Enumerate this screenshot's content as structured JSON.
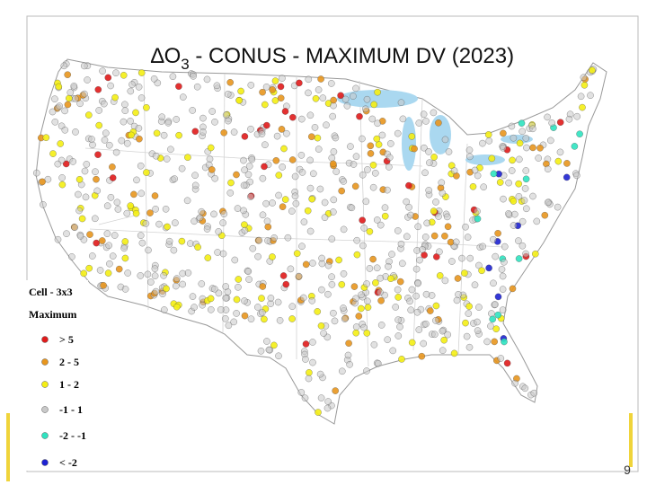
{
  "title": {
    "prefix": "∆O",
    "subscript": "3",
    "suffix": " - CONUS - MAXIMUM DV (2023)"
  },
  "legend": {
    "title": "Cell - 3x3",
    "subtitle": "Maximum",
    "items": [
      {
        "label": "> 5",
        "color": "#e01b1b"
      },
      {
        "label": "2 - 5",
        "color": "#e8961e"
      },
      {
        "label": "1 - 2",
        "color": "#f4ee14"
      },
      {
        "label": "-1 - 1",
        "color": "#c9c9c9"
      },
      {
        "label": "-2 - -1",
        "color": "#2fe3c0"
      },
      {
        "label": "< -2",
        "color": "#1e22d2"
      }
    ]
  },
  "page_number": "9"
}
